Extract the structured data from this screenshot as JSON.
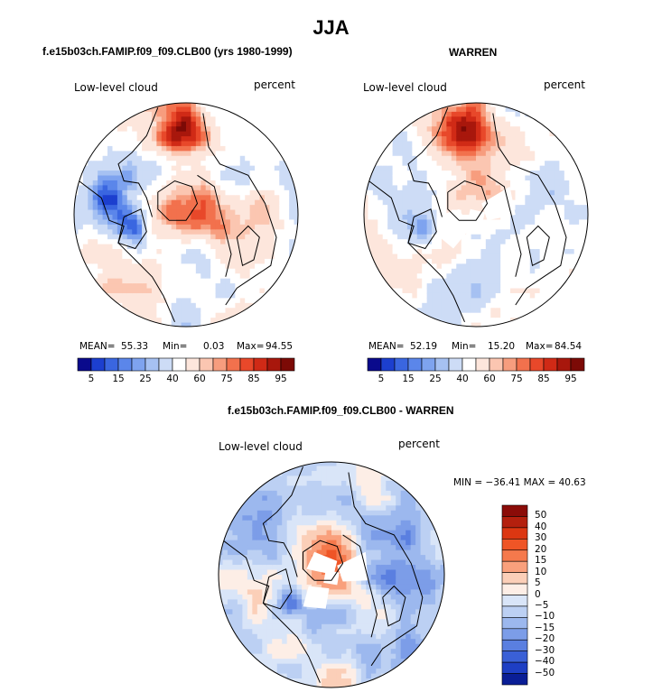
{
  "title": "JJA",
  "panels": [
    {
      "title": "f.e15b03ch.FAMIP.f09_f09.CLB00 (yrs 1980-1999)",
      "field_label": "Low-level cloud",
      "units_label": "percent",
      "stats": {
        "mean_label": "MEAN=",
        "mean": "55.33",
        "min_label": "Min=",
        "min": "0.03",
        "max_label": "Max=",
        "max": "94.55"
      },
      "colorbar_ticks": [
        "5",
        "15",
        "25",
        "40",
        "60",
        "75",
        "85",
        "95"
      ]
    },
    {
      "title": "WARREN",
      "field_label": "Low-level cloud",
      "units_label": "percent",
      "stats": {
        "mean_label": "MEAN=",
        "mean": "52.19",
        "min_label": "Min=",
        "min": "15.20",
        "max_label": "Max=",
        "max": "84.54"
      },
      "colorbar_ticks": [
        "5",
        "15",
        "25",
        "40",
        "60",
        "75",
        "85",
        "95"
      ]
    },
    {
      "title": "f.e15b03ch.FAMIP.f09_f09.CLB00 - WARREN",
      "field_label": "Low-level cloud",
      "units_label": "percent",
      "minmax_text": "MIN = −36.41 MAX =  40.63",
      "colorbar_ticks": [
        "50",
        "40",
        "30",
        "20",
        "15",
        "10",
        "5",
        "0",
        "−5",
        "−10",
        "−15",
        "−20",
        "−30",
        "−40",
        "−50"
      ]
    }
  ],
  "colors": {
    "abs_scale": [
      "#0a0a8c",
      "#1c3fcf",
      "#3a66e0",
      "#5b86ea",
      "#7ea3ef",
      "#a6c1f2",
      "#cddcf6",
      "#ffffff",
      "#fde6dc",
      "#fbc6b1",
      "#f79d7e",
      "#f2714d",
      "#e8482a",
      "#d02a16",
      "#a8170c",
      "#7c0a06"
    ],
    "diff_scale": [
      "#8b0c08",
      "#b4200e",
      "#dc3712",
      "#ef5526",
      "#f5794c",
      "#f9a07c",
      "#fbcfb8",
      "#fdeee6",
      "#d9e5f8",
      "#bcd0f3",
      "#9cb8ee",
      "#7c9de8",
      "#5a7fe0",
      "#3a60d6",
      "#1e3fc4",
      "#0a1e96"
    ],
    "land_outline": "#000000"
  }
}
